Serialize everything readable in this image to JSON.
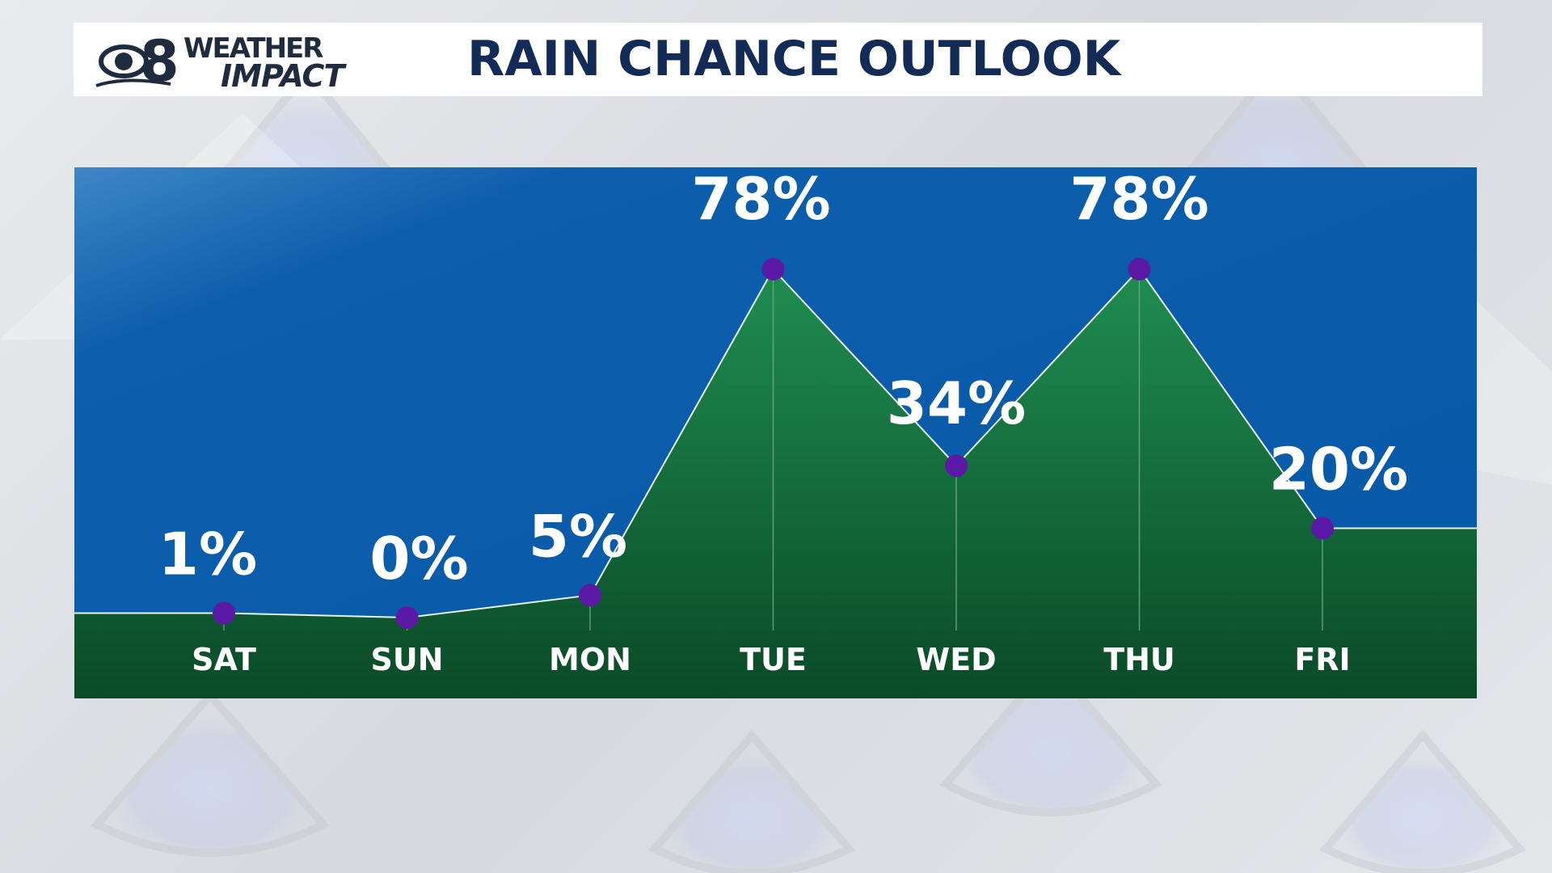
{
  "brand": {
    "logo_line1": "WEATHER",
    "logo_line2": "IMPACT",
    "logo_number": "8"
  },
  "header": {
    "title": "RAIN CHANCE OUTLOOK"
  },
  "colors": {
    "sky": "#0a5cab",
    "fill_top": "#1e8a4e",
    "fill_bottom": "#0b4d2a",
    "marker": "#5a1aa6",
    "title": "#132b57"
  },
  "chart_data": {
    "type": "area",
    "title": "RAIN CHANCE OUTLOOK",
    "categories": [
      "SAT",
      "SUN",
      "MON",
      "TUE",
      "WED",
      "THU",
      "FRI"
    ],
    "values": [
      1,
      0,
      5,
      78,
      34,
      78,
      20
    ],
    "labels": [
      "1%",
      "0%",
      "5%",
      "78%",
      "34%",
      "78%",
      "20%"
    ],
    "ylim": [
      0,
      100
    ],
    "grid": false,
    "xlabel": "",
    "ylabel": ""
  }
}
